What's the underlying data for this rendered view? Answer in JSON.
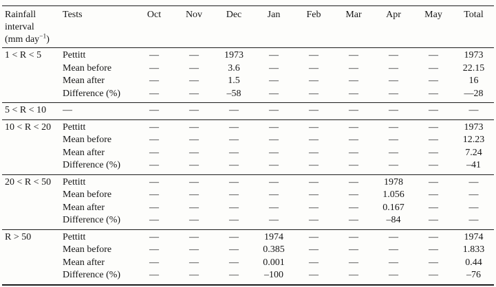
{
  "table": {
    "header": {
      "interval_line1": "Rainfall",
      "interval_line2": "interval",
      "unit_prefix": "(mm day",
      "unit_sup": "−1",
      "unit_suffix": ")",
      "tests": "Tests",
      "months": [
        "Oct",
        "Nov",
        "Dec",
        "Jan",
        "Feb",
        "Mar",
        "Apr",
        "May"
      ],
      "total": "Total"
    },
    "groups": [
      {
        "interval": "1 < R < 5",
        "rows": [
          {
            "test": "Pettitt",
            "values": [
              "—",
              "—",
              "1973",
              "—",
              "—",
              "—",
              "—",
              "—",
              "1973"
            ]
          },
          {
            "test": "Mean before",
            "values": [
              "—",
              "—",
              "3.6",
              "—",
              "—",
              "—",
              "—",
              "—",
              "22.15"
            ]
          },
          {
            "test": "Mean after",
            "values": [
              "—",
              "—",
              "1.5",
              "—",
              "—",
              "—",
              "—",
              "—",
              "16"
            ]
          },
          {
            "test": "Difference (%)",
            "values": [
              "—",
              "—",
              "–58",
              "—",
              "—",
              "—",
              "—",
              "—",
              "—28"
            ]
          }
        ]
      },
      {
        "interval": "5 < R < 10",
        "rows": [
          {
            "test": "—",
            "values": [
              "—",
              "—",
              "—",
              "—",
              "—",
              "—",
              "—",
              "—",
              "—"
            ]
          }
        ]
      },
      {
        "interval": "10 < R < 20",
        "rows": [
          {
            "test": "Pettitt",
            "values": [
              "—",
              "—",
              "—",
              "—",
              "—",
              "—",
              "—",
              "—",
              "1973"
            ]
          },
          {
            "test": "Mean before",
            "values": [
              "—",
              "—",
              "—",
              "—",
              "—",
              "—",
              "—",
              "—",
              "12.23"
            ]
          },
          {
            "test": "Mean after",
            "values": [
              "—",
              "—",
              "—",
              "—",
              "—",
              "—",
              "—",
              "—",
              "7.24"
            ]
          },
          {
            "test": "Difference (%)",
            "values": [
              "—",
              "—",
              "—",
              "—",
              "—",
              "—",
              "—",
              "—",
              "–41"
            ]
          }
        ]
      },
      {
        "interval": "20 < R < 50",
        "rows": [
          {
            "test": "Pettitt",
            "values": [
              "—",
              "—",
              "—",
              "—",
              "—",
              "—",
              "1978",
              "—",
              "—"
            ]
          },
          {
            "test": "Mean before",
            "values": [
              "—",
              "—",
              "—",
              "—",
              "—",
              "—",
              "1.056",
              "—",
              "—"
            ]
          },
          {
            "test": "Mean after",
            "values": [
              "—",
              "—",
              "—",
              "—",
              "—",
              "—",
              "0.167",
              "—",
              "—"
            ]
          },
          {
            "test": "Difference (%)",
            "values": [
              "—",
              "—",
              "—",
              "—",
              "—",
              "—",
              "–84",
              "—",
              "—"
            ]
          }
        ]
      },
      {
        "interval": "R > 50",
        "rows": [
          {
            "test": "Pettitt",
            "values": [
              "—",
              "—",
              "—",
              "1974",
              "—",
              "—",
              "—",
              "—",
              "1974"
            ]
          },
          {
            "test": "Mean before",
            "values": [
              "—",
              "—",
              "—",
              "0.385",
              "—",
              "—",
              "—",
              "—",
              "1.833"
            ]
          },
          {
            "test": "Mean after",
            "values": [
              "—",
              "—",
              "—",
              "0.001",
              "—",
              "—",
              "—",
              "—",
              "0.44"
            ]
          },
          {
            "test": "Difference (%)",
            "values": [
              "—",
              "—",
              "—",
              "–100",
              "—",
              "—",
              "—",
              "—",
              "–76"
            ]
          }
        ]
      }
    ]
  }
}
